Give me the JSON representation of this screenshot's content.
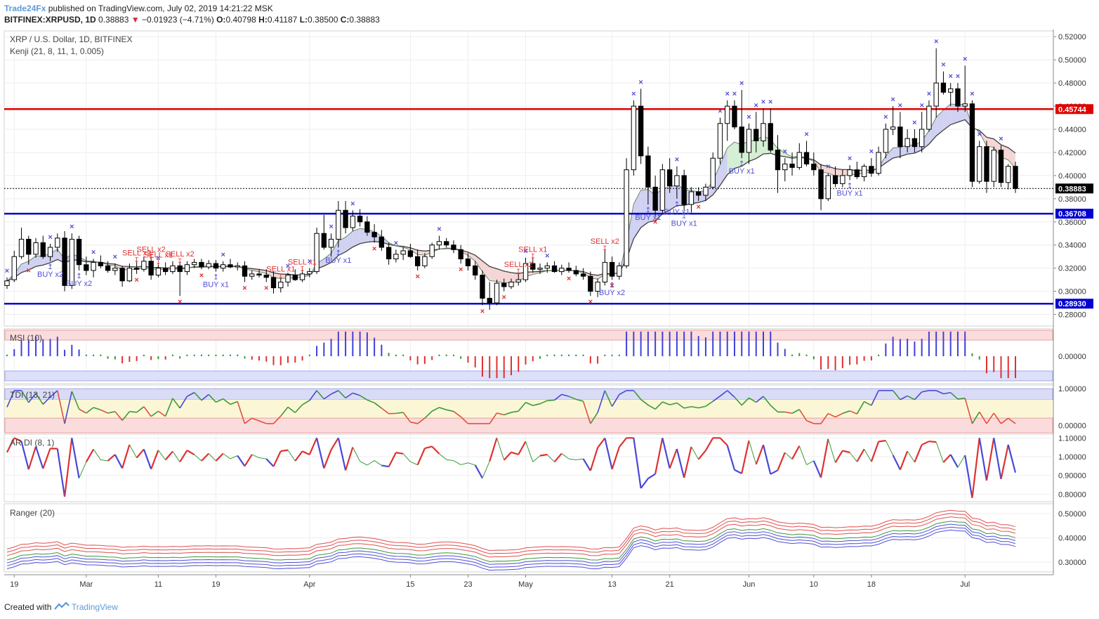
{
  "header": {
    "author": "Trade24Fx",
    "published_text": "published on TradingView.com, July 02, 2019 14:21:22 MSK",
    "symbol_line": "BITFINEX:XRPUSD, 1D",
    "last": "0.38883",
    "change": "−0.01923 (−4.71%)",
    "o_label": "O:",
    "o": "0.40798",
    "h_label": "H:",
    "h": "0.41187",
    "l_label": "L:",
    "l": "0.38500",
    "c_label": "C:",
    "c": "0.38883"
  },
  "footer": {
    "created_with": "Created with",
    "logo_text": "TradingView"
  },
  "colors": {
    "up_candle": "#ffffff",
    "down_candle": "#000000",
    "resistance": "#e00000",
    "support": "#0000d0",
    "buy_marker": "#5050d8",
    "sell_marker": "#e03030",
    "kenji_band_up": "#c9c9f0",
    "kenji_band_down": "#f3cfcf",
    "kenji_band_green": "#cdeccd",
    "grid": "#eeeeee",
    "axis_text": "#333333"
  },
  "chart_data": [
    {
      "type": "candlestick",
      "title": "XRP / U.S. Dollar, 1D, BITFINEX",
      "indicator": "Kenji (21, 8, 11, 1, 0.005)",
      "ylim": [
        0.27,
        0.525
      ],
      "y_ticks": [
        "0.28000",
        "0.30000",
        "0.32000",
        "0.34000",
        "0.36000",
        "0.38000",
        "0.40000",
        "0.42000",
        "0.44000",
        "0.46000",
        "0.48000",
        "0.50000",
        "0.52000"
      ],
      "x_ticks": [
        {
          "label": "19",
          "i": 1
        },
        {
          "label": "Mar",
          "i": 11
        },
        {
          "label": "11",
          "i": 21
        },
        {
          "label": "19",
          "i": 29
        },
        {
          "label": "Apr",
          "i": 42
        },
        {
          "label": "15",
          "i": 56
        },
        {
          "label": "23",
          "i": 64
        },
        {
          "label": "May",
          "i": 72
        },
        {
          "label": "13",
          "i": 84
        },
        {
          "label": "21",
          "i": 92
        },
        {
          "label": "Jun",
          "i": 103
        },
        {
          "label": "10",
          "i": 112
        },
        {
          "label": "18",
          "i": 120
        },
        {
          "label": "Jul",
          "i": 133
        }
      ],
      "levels": [
        {
          "value": 0.45744,
          "label": "0.45744",
          "color": "#e00000"
        },
        {
          "value": 0.38883,
          "label": "0.38883",
          "color": "#000000",
          "style": "dotted"
        },
        {
          "value": 0.36708,
          "label": "0.36708",
          "color": "#0000d0"
        },
        {
          "value": 0.2893,
          "label": "0.28930",
          "color": "#0000d0"
        }
      ],
      "signals": [
        {
          "text": "BUY x2",
          "i": 6,
          "side": "buy"
        },
        {
          "text": "BUY x2",
          "i": 10,
          "side": "buy"
        },
        {
          "text": "SELL x2",
          "i": 18,
          "side": "sell"
        },
        {
          "text": "SELL x2",
          "i": 20,
          "side": "sell"
        },
        {
          "text": "SELL x1",
          "i": 21,
          "side": "sell"
        },
        {
          "text": "SELL x2",
          "i": 24,
          "side": "sell"
        },
        {
          "text": "BUY x1",
          "i": 29,
          "side": "buy"
        },
        {
          "text": "SELL x1",
          "i": 38,
          "side": "sell"
        },
        {
          "text": "SELL x1",
          "i": 41,
          "side": "sell"
        },
        {
          "text": "BUY x1",
          "i": 46,
          "side": "buy"
        },
        {
          "text": "SELL x2",
          "i": 71,
          "side": "sell"
        },
        {
          "text": "SELL x1",
          "i": 73,
          "side": "sell"
        },
        {
          "text": "SELL x2",
          "i": 83,
          "side": "sell"
        },
        {
          "text": "BUY x2",
          "i": 84,
          "side": "buy"
        },
        {
          "text": "BUY x1",
          "i": 89,
          "side": "buy"
        },
        {
          "text": "BUY x1",
          "i": 94,
          "side": "buy"
        },
        {
          "text": "BUY x1",
          "i": 93,
          "side": "buy"
        },
        {
          "text": "BUY x1",
          "i": 102,
          "side": "buy"
        },
        {
          "text": "BUY x1",
          "i": 117,
          "side": "buy"
        }
      ],
      "candles_ohlc": [
        [
          0.305,
          0.312,
          0.302,
          0.309
        ],
        [
          0.31,
          0.335,
          0.308,
          0.33
        ],
        [
          0.33,
          0.355,
          0.328,
          0.345
        ],
        [
          0.345,
          0.348,
          0.323,
          0.332
        ],
        [
          0.332,
          0.346,
          0.329,
          0.342
        ],
        [
          0.342,
          0.348,
          0.328,
          0.33
        ],
        [
          0.33,
          0.341,
          0.326,
          0.338
        ],
        [
          0.338,
          0.35,
          0.334,
          0.346
        ],
        [
          0.346,
          0.352,
          0.3,
          0.305
        ],
        [
          0.305,
          0.35,
          0.302,
          0.345
        ],
        [
          0.345,
          0.348,
          0.318,
          0.323
        ],
        [
          0.323,
          0.33,
          0.314,
          0.318
        ],
        [
          0.318,
          0.328,
          0.312,
          0.325
        ],
        [
          0.325,
          0.331,
          0.32,
          0.322
        ],
        [
          0.322,
          0.326,
          0.316,
          0.318
        ],
        [
          0.318,
          0.324,
          0.314,
          0.32
        ],
        [
          0.32,
          0.322,
          0.304,
          0.309
        ],
        [
          0.309,
          0.324,
          0.308,
          0.32
        ],
        [
          0.32,
          0.325,
          0.315,
          0.319
        ],
        [
          0.319,
          0.33,
          0.317,
          0.326
        ],
        [
          0.326,
          0.328,
          0.31,
          0.314
        ],
        [
          0.314,
          0.323,
          0.312,
          0.32
        ],
        [
          0.32,
          0.325,
          0.314,
          0.317
        ],
        [
          0.317,
          0.326,
          0.315,
          0.322
        ],
        [
          0.322,
          0.324,
          0.296,
          0.317
        ],
        [
          0.317,
          0.326,
          0.314,
          0.323
        ],
        [
          0.323,
          0.328,
          0.32,
          0.325
        ],
        [
          0.325,
          0.328,
          0.319,
          0.321
        ],
        [
          0.321,
          0.327,
          0.319,
          0.324
        ],
        [
          0.324,
          0.327,
          0.317,
          0.32
        ],
        [
          0.32,
          0.326,
          0.317,
          0.323
        ],
        [
          0.323,
          0.328,
          0.32,
          0.321
        ],
        [
          0.321,
          0.325,
          0.318,
          0.322
        ],
        [
          0.322,
          0.326,
          0.308,
          0.313
        ],
        [
          0.313,
          0.318,
          0.31,
          0.315
        ],
        [
          0.315,
          0.319,
          0.312,
          0.314
        ],
        [
          0.314,
          0.319,
          0.308,
          0.312
        ],
        [
          0.312,
          0.317,
          0.298,
          0.303
        ],
        [
          0.303,
          0.311,
          0.299,
          0.308
        ],
        [
          0.308,
          0.316,
          0.304,
          0.314
        ],
        [
          0.314,
          0.319,
          0.309,
          0.31
        ],
        [
          0.31,
          0.317,
          0.308,
          0.315
        ],
        [
          0.315,
          0.32,
          0.312,
          0.317
        ],
        [
          0.317,
          0.355,
          0.315,
          0.35
        ],
        [
          0.35,
          0.366,
          0.336,
          0.338
        ],
        [
          0.338,
          0.35,
          0.33,
          0.345
        ],
        [
          0.345,
          0.378,
          0.338,
          0.37
        ],
        [
          0.37,
          0.378,
          0.35,
          0.355
        ],
        [
          0.355,
          0.37,
          0.352,
          0.365
        ],
        [
          0.365,
          0.371,
          0.356,
          0.36
        ],
        [
          0.36,
          0.365,
          0.348,
          0.351
        ],
        [
          0.351,
          0.358,
          0.342,
          0.347
        ],
        [
          0.347,
          0.353,
          0.335,
          0.338
        ],
        [
          0.338,
          0.342,
          0.323,
          0.328
        ],
        [
          0.328,
          0.336,
          0.325,
          0.332
        ],
        [
          0.332,
          0.338,
          0.327,
          0.335
        ],
        [
          0.335,
          0.341,
          0.329,
          0.33
        ],
        [
          0.33,
          0.336,
          0.318,
          0.322
        ],
        [
          0.322,
          0.333,
          0.32,
          0.33
        ],
        [
          0.33,
          0.342,
          0.328,
          0.34
        ],
        [
          0.34,
          0.348,
          0.336,
          0.343
        ],
        [
          0.343,
          0.346,
          0.338,
          0.34
        ],
        [
          0.34,
          0.344,
          0.333,
          0.336
        ],
        [
          0.336,
          0.34,
          0.324,
          0.328
        ],
        [
          0.328,
          0.333,
          0.318,
          0.322
        ],
        [
          0.322,
          0.326,
          0.31,
          0.314
        ],
        [
          0.314,
          0.318,
          0.288,
          0.294
        ],
        [
          0.294,
          0.308,
          0.284,
          0.29
        ],
        [
          0.29,
          0.31,
          0.288,
          0.307
        ],
        [
          0.307,
          0.311,
          0.3,
          0.304
        ],
        [
          0.304,
          0.311,
          0.302,
          0.308
        ],
        [
          0.308,
          0.315,
          0.305,
          0.31
        ],
        [
          0.31,
          0.329,
          0.308,
          0.324
        ],
        [
          0.324,
          0.328,
          0.316,
          0.319
        ],
        [
          0.319,
          0.324,
          0.315,
          0.32
        ],
        [
          0.32,
          0.325,
          0.316,
          0.322
        ],
        [
          0.322,
          0.326,
          0.316,
          0.317
        ],
        [
          0.317,
          0.323,
          0.314,
          0.32
        ],
        [
          0.32,
          0.325,
          0.316,
          0.318
        ],
        [
          0.318,
          0.322,
          0.313,
          0.315
        ],
        [
          0.315,
          0.32,
          0.31,
          0.313
        ],
        [
          0.313,
          0.317,
          0.296,
          0.3
        ],
        [
          0.3,
          0.311,
          0.295,
          0.308
        ],
        [
          0.308,
          0.335,
          0.305,
          0.325
        ],
        [
          0.325,
          0.33,
          0.31,
          0.313
        ],
        [
          0.313,
          0.325,
          0.31,
          0.322
        ],
        [
          0.322,
          0.415,
          0.32,
          0.405
        ],
        [
          0.405,
          0.465,
          0.4,
          0.46
        ],
        [
          0.46,
          0.475,
          0.41,
          0.417
        ],
        [
          0.417,
          0.425,
          0.375,
          0.39
        ],
        [
          0.39,
          0.4,
          0.365,
          0.37
        ],
        [
          0.37,
          0.41,
          0.368,
          0.405
        ],
        [
          0.405,
          0.415,
          0.385,
          0.391
        ],
        [
          0.391,
          0.408,
          0.38,
          0.4
        ],
        [
          0.4,
          0.405,
          0.37,
          0.375
        ],
        [
          0.375,
          0.39,
          0.368,
          0.386
        ],
        [
          0.386,
          0.39,
          0.378,
          0.383
        ],
        [
          0.383,
          0.393,
          0.378,
          0.39
        ],
        [
          0.39,
          0.42,
          0.388,
          0.415
        ],
        [
          0.415,
          0.45,
          0.41,
          0.445
        ],
        [
          0.445,
          0.465,
          0.43,
          0.46
        ],
        [
          0.46,
          0.465,
          0.44,
          0.442
        ],
        [
          0.442,
          0.474,
          0.415,
          0.42
        ],
        [
          0.42,
          0.445,
          0.41,
          0.44
        ],
        [
          0.44,
          0.455,
          0.42,
          0.43
        ],
        [
          0.43,
          0.458,
          0.425,
          0.445
        ],
        [
          0.445,
          0.458,
          0.42,
          0.422
        ],
        [
          0.422,
          0.435,
          0.385,
          0.405
        ],
        [
          0.405,
          0.415,
          0.395,
          0.41
        ],
        [
          0.41,
          0.42,
          0.4,
          0.407
        ],
        [
          0.407,
          0.428,
          0.405,
          0.42
        ],
        [
          0.42,
          0.43,
          0.408,
          0.41
        ],
        [
          0.41,
          0.42,
          0.4,
          0.405
        ],
        [
          0.405,
          0.41,
          0.37,
          0.38
        ],
        [
          0.38,
          0.402,
          0.378,
          0.4
        ],
        [
          0.4,
          0.408,
          0.39,
          0.393
        ],
        [
          0.393,
          0.405,
          0.39,
          0.4
        ],
        [
          0.4,
          0.409,
          0.396,
          0.405
        ],
        [
          0.405,
          0.412,
          0.397,
          0.399
        ],
        [
          0.399,
          0.41,
          0.395,
          0.408
        ],
        [
          0.408,
          0.415,
          0.399,
          0.402
        ],
        [
          0.402,
          0.425,
          0.4,
          0.42
        ],
        [
          0.42,
          0.445,
          0.415,
          0.44
        ],
        [
          0.44,
          0.46,
          0.435,
          0.442
        ],
        [
          0.442,
          0.455,
          0.415,
          0.425
        ],
        [
          0.425,
          0.44,
          0.42,
          0.432
        ],
        [
          0.432,
          0.44,
          0.42,
          0.425
        ],
        [
          0.425,
          0.455,
          0.42,
          0.44
        ],
        [
          0.44,
          0.465,
          0.438,
          0.46
        ],
        [
          0.46,
          0.51,
          0.45,
          0.48
        ],
        [
          0.48,
          0.49,
          0.47,
          0.472
        ],
        [
          0.472,
          0.48,
          0.46,
          0.475
        ],
        [
          0.475,
          0.48,
          0.455,
          0.46
        ],
        [
          0.46,
          0.495,
          0.455,
          0.462
        ],
        [
          0.462,
          0.465,
          0.39,
          0.395
        ],
        [
          0.395,
          0.43,
          0.393,
          0.425
        ],
        [
          0.425,
          0.43,
          0.385,
          0.395
        ],
        [
          0.395,
          0.425,
          0.39,
          0.422
        ],
        [
          0.422,
          0.426,
          0.39,
          0.394
        ],
        [
          0.394,
          0.41,
          0.388,
          0.408
        ],
        [
          0.408,
          0.4119,
          0.385,
          0.3888
        ]
      ]
    },
    {
      "type": "bar",
      "title": "MSI (10)",
      "ylim": [
        -0.05,
        0.05
      ],
      "y_ticks": [
        "0.00000"
      ]
    },
    {
      "type": "line",
      "title": "TDI (13, 21)",
      "ylim": [
        -0.2,
        1.1
      ],
      "y_ticks": [
        "0.00000",
        "1.00000"
      ]
    },
    {
      "type": "line",
      "title": "AR DI (8, 1)",
      "ylim": [
        0.76,
        1.12
      ],
      "y_ticks": [
        "0.80000",
        "0.90000",
        "1.00000",
        "1.10000"
      ]
    },
    {
      "type": "line",
      "title": "Ranger (20)",
      "ylim": [
        0.26,
        0.54
      ],
      "y_ticks": [
        "0.30000",
        "0.40000",
        "0.50000"
      ]
    }
  ]
}
